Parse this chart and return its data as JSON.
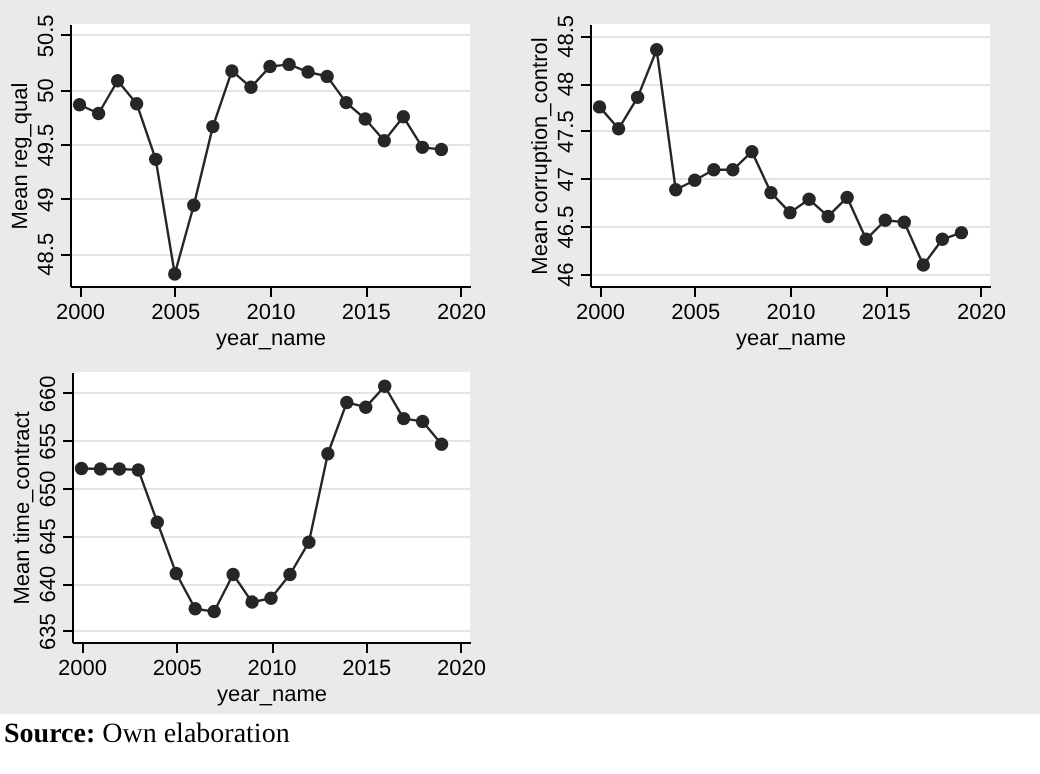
{
  "chart_data": [
    {
      "type": "line",
      "xlabel": "year_name",
      "ylabel": "Mean reg_qual",
      "marker": "circle",
      "grid": "y",
      "x": [
        2000,
        2001,
        2002,
        2003,
        2004,
        2005,
        2006,
        2007,
        2008,
        2009,
        2010,
        2011,
        2012,
        2013,
        2014,
        2015,
        2016,
        2017,
        2018,
        2019
      ],
      "series": [
        {
          "color": "#262626",
          "values": [
            49.86,
            49.78,
            50.08,
            49.87,
            49.36,
            48.31,
            48.94,
            49.66,
            50.17,
            50.02,
            50.21,
            50.23,
            50.16,
            50.12,
            49.88,
            49.73,
            49.53,
            49.75,
            49.47,
            49.45
          ]
        }
      ],
      "xlim": [
        1999.5,
        2020.5
      ],
      "xticks": [
        2000,
        2005,
        2010,
        2015,
        2020
      ],
      "ylim": [
        48.2,
        50.6
      ],
      "yticks": [
        48.5,
        49,
        49.5,
        50,
        50.5
      ]
    },
    {
      "type": "line",
      "xlabel": "year_name",
      "ylabel": "Mean corruption_control",
      "marker": "circle",
      "grid": "y",
      "x": [
        2000,
        2001,
        2002,
        2003,
        2004,
        2005,
        2006,
        2007,
        2008,
        2009,
        2010,
        2011,
        2012,
        2013,
        2014,
        2015,
        2016,
        2017,
        2018,
        2019
      ],
      "series": [
        {
          "color": "#262626",
          "values": [
            47.75,
            47.52,
            47.85,
            48.35,
            46.88,
            46.98,
            47.09,
            47.09,
            47.28,
            46.85,
            46.64,
            46.78,
            46.6,
            46.8,
            46.36,
            46.56,
            46.54,
            46.09,
            46.36,
            46.43
          ]
        }
      ],
      "xlim": [
        1999.5,
        2020.5
      ],
      "xticks": [
        2000,
        2005,
        2010,
        2015,
        2020
      ],
      "ylim": [
        45.87,
        48.62
      ],
      "yticks": [
        46,
        46.5,
        47,
        47.5,
        48,
        48.5
      ]
    },
    {
      "type": "line",
      "xlabel": "year_name",
      "ylabel": "Mean time_contract",
      "marker": "circle",
      "grid": "y",
      "x": [
        2000,
        2001,
        2002,
        2003,
        2004,
        2005,
        2006,
        2007,
        2008,
        2009,
        2010,
        2011,
        2012,
        2013,
        2014,
        2015,
        2016,
        2017,
        2018,
        2019
      ],
      "series": [
        {
          "color": "#262626",
          "values": [
            652.05,
            652.0,
            652.0,
            651.9,
            646.4,
            641.0,
            637.3,
            637.0,
            640.9,
            638.0,
            638.4,
            640.9,
            644.3,
            653.6,
            659.0,
            658.5,
            660.7,
            657.3,
            657.0,
            654.6
          ]
        }
      ],
      "xlim": [
        1999.5,
        2020.5
      ],
      "xticks": [
        2000,
        2005,
        2010,
        2015,
        2020
      ],
      "ylim": [
        633.8,
        662.2
      ],
      "yticks": [
        635,
        640,
        645,
        650,
        655,
        660
      ],
      "annotations": [
        "Source: Own elaboration"
      ]
    }
  ]
}
